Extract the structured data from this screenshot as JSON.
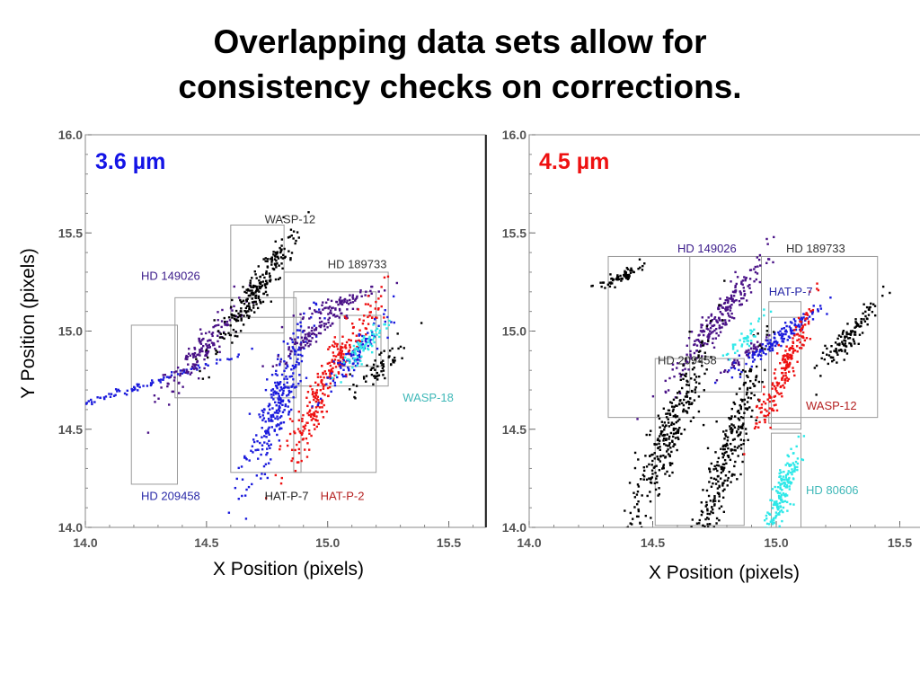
{
  "slide": {
    "title_line1": "Overlapping data sets allow for",
    "title_line2": "consistency checks on corrections."
  },
  "colors": {
    "blue": "#1b1bdc",
    "red": "#ee1111",
    "purple": "#4a1287",
    "black": "#000000",
    "cyan": "#2ee8e8",
    "label_grey": "#444444",
    "label_cyan": "#3fb8b8",
    "box": "#9a9a9a"
  },
  "chart_data": [
    {
      "type": "scatter",
      "panel_label": "3.6 µm",
      "panel_label_color": "#1414e6",
      "xlabel": "X Position (pixels)",
      "ylabel": "Y Position (pixels)",
      "xlim": [
        14.0,
        15.65
      ],
      "ylim": [
        14.0,
        16.0
      ],
      "xticks": [
        "14.0",
        "14.5",
        "15.0",
        "15.5"
      ],
      "yticks": [
        "14.0",
        "14.5",
        "15.0",
        "15.5",
        "16.0"
      ],
      "series": [
        {
          "name": "HD 209458",
          "color": "#1b1bdc",
          "label_color": "#2a2aa8",
          "label_pos": [
            14.23,
            14.14
          ],
          "box": [
            14.19,
            14.38,
            14.22,
            15.03
          ],
          "clusters": [
            {
              "x0": 14.25,
              "y0": 14.73,
              "sx": 0.022,
              "sy": 0.085,
              "slope": 0.4,
              "n": 90
            }
          ]
        },
        {
          "name": "HD 149026",
          "color": "#4a1287",
          "label_color": "#3a1a8a",
          "label_pos": [
            14.23,
            15.26
          ],
          "box": [
            14.37,
            14.87,
            14.66,
            15.17
          ],
          "clusters": [
            {
              "x0": 14.48,
              "y0": 14.9,
              "sx": 0.035,
              "sy": 0.12,
              "slope": 1.6,
              "n": 150
            }
          ]
        },
        {
          "name": "WASP-12",
          "color": "#000000",
          "label_color": "#333333",
          "label_pos": [
            14.74,
            15.55
          ],
          "box": [
            14.6,
            14.82,
            14.99,
            15.54
          ],
          "clusters": [
            {
              "x0": 14.71,
              "y0": 15.22,
              "sx": 0.028,
              "sy": 0.16,
              "slope": 2.0,
              "n": 240
            },
            {
              "x0": 15.22,
              "y0": 14.82,
              "sx": 0.025,
              "sy": 0.07,
              "slope": 1.5,
              "n": 60
            }
          ]
        },
        {
          "name": "HAT-P-7",
          "color": "#1b1bdc",
          "label_color": "#222222",
          "label_pos": [
            14.74,
            14.14
          ],
          "box": [
            14.6,
            14.89,
            14.28,
            15.07
          ],
          "clusters": [
            {
              "x0": 14.79,
              "y0": 14.62,
              "sx": 0.035,
              "sy": 0.22,
              "slope": 3.5,
              "n": 280
            }
          ]
        },
        {
          "name": "HD 189733",
          "color": "#4a1287",
          "label_color": "#333333",
          "label_pos": [
            15.0,
            15.32
          ],
          "box": [
            14.82,
            15.25,
            14.72,
            15.3
          ],
          "clusters": [
            {
              "x0": 14.95,
              "y0": 15.0,
              "sx": 0.03,
              "sy": 0.08,
              "slope": 1.0,
              "n": 100
            },
            {
              "x0": 15.04,
              "y0": 15.14,
              "sx": 0.03,
              "sy": 0.04,
              "slope": 0.5,
              "n": 70
            }
          ]
        },
        {
          "name": "HAT-P-2",
          "color": "#ee1111",
          "label_color": "#b52222",
          "label_pos": [
            14.97,
            14.14
          ],
          "box": [
            14.86,
            15.2,
            14.28,
            15.2
          ],
          "clusters": [
            {
              "x0": 14.95,
              "y0": 14.63,
              "sx": 0.025,
              "sy": 0.17,
              "slope": 3.0,
              "n": 160
            },
            {
              "x0": 15.08,
              "y0": 14.92,
              "sx": 0.03,
              "sy": 0.13,
              "slope": 2.0,
              "n": 120
            }
          ]
        },
        {
          "name": "WASP-18",
          "color": "#1b1bdc",
          "label_color": "#3fb8b8",
          "label_pos": [
            15.31,
            14.64
          ],
          "box": [
            15.05,
            15.22,
            14.82,
            15.08
          ],
          "clusters": [
            {
              "x0": 15.11,
              "y0": 14.88,
              "sx": 0.03,
              "sy": 0.1,
              "slope": 1.7,
              "n": 100
            },
            {
              "x0": 15.15,
              "y0": 14.92,
              "sx": 0.02,
              "sy": 0.06,
              "slope": 1.5,
              "n": 70,
              "color": "#2ee8e8"
            }
          ]
        }
      ]
    },
    {
      "type": "scatter",
      "panel_label": "4.5 µm",
      "panel_label_color": "#ee1111",
      "xlabel": "X Position (pixels)",
      "ylabel": "",
      "xlim": [
        14.0,
        15.6
      ],
      "ylim": [
        14.0,
        16.0
      ],
      "xticks": [
        "14.0",
        "14.5",
        "15.0",
        "15.5"
      ],
      "yticks": [
        "14.0",
        "14.5",
        "15.0",
        "15.5",
        "16.0"
      ],
      "series": [
        {
          "name": "HD 149026",
          "color": "#4a1287",
          "label_color": "#3a1a8a",
          "label_pos": [
            14.6,
            15.4
          ],
          "box": [
            14.65,
            14.94,
            14.69,
            15.38
          ],
          "clusters": [
            {
              "x0": 14.76,
              "y0": 15.05,
              "sx": 0.03,
              "sy": 0.15,
              "slope": 1.8,
              "n": 230
            },
            {
              "x0": 14.88,
              "y0": 14.88,
              "sx": 0.02,
              "sy": 0.05,
              "slope": 1.0,
              "n": 50
            }
          ]
        },
        {
          "name": "HD 189733",
          "color": "#000000",
          "label_color": "#333333",
          "label_pos": [
            15.04,
            15.4
          ],
          "box": [
            14.32,
            15.41,
            14.56,
            15.38
          ],
          "clusters": [
            {
              "x0": 14.38,
              "y0": 15.28,
              "sx": 0.025,
              "sy": 0.03,
              "slope": 0.7,
              "n": 70
            },
            {
              "x0": 15.3,
              "y0": 14.98,
              "sx": 0.025,
              "sy": 0.09,
              "slope": 1.6,
              "n": 120
            }
          ]
        },
        {
          "name": "HAT-P-7",
          "color": "#1b1bdc",
          "label_color": "#2a2aa8",
          "label_pos": [
            14.97,
            15.18
          ],
          "box": [
            14.97,
            15.1,
            14.53,
            15.15
          ],
          "clusters": [
            {
              "x0": 15.01,
              "y0": 14.96,
              "sx": 0.025,
              "sy": 0.08,
              "slope": 1.0,
              "n": 140
            }
          ]
        },
        {
          "name": "HD 209458",
          "color": "#000000",
          "label_color": "#333333",
          "label_pos": [
            14.52,
            14.83
          ],
          "box": [
            14.51,
            14.87,
            14.01,
            14.86
          ],
          "clusters": [
            {
              "x0": 14.55,
              "y0": 14.43,
              "sx": 0.035,
              "sy": 0.25,
              "slope": 3.0,
              "n": 300
            },
            {
              "x0": 14.81,
              "y0": 14.38,
              "sx": 0.03,
              "sy": 0.25,
              "slope": 4.0,
              "n": 280
            }
          ]
        },
        {
          "name": "WASP-12",
          "color": "#ee1111",
          "label_color": "#b52222",
          "label_pos": [
            15.12,
            14.6
          ],
          "box": [
            14.98,
            15.1,
            14.5,
            15.07
          ],
          "clusters": [
            {
              "x0": 15.04,
              "y0": 14.83,
              "sx": 0.02,
              "sy": 0.16,
              "slope": 3.0,
              "n": 200
            }
          ]
        },
        {
          "name": "HD 80606",
          "color": "#2ee8e8",
          "label_color": "#3fb8b8",
          "label_pos": [
            15.12,
            14.17
          ],
          "box": [
            14.98,
            15.1,
            14.0,
            14.48
          ],
          "clusters": [
            {
              "x0": 15.02,
              "y0": 14.17,
              "sx": 0.02,
              "sy": 0.13,
              "slope": 3.5,
              "n": 180
            },
            {
              "x0": 14.87,
              "y0": 14.95,
              "sx": 0.015,
              "sy": 0.05,
              "slope": 1.5,
              "n": 40
            }
          ]
        }
      ]
    }
  ]
}
